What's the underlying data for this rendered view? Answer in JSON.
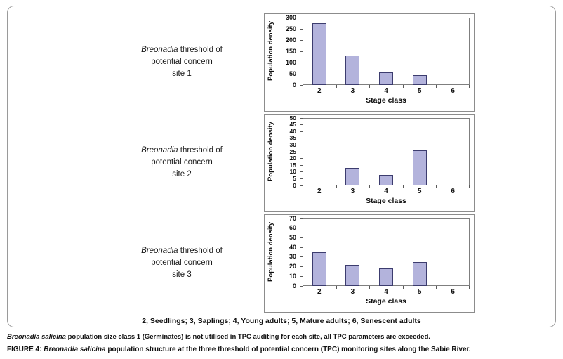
{
  "figure": {
    "legend": "2, Seedlings; 3, Saplings; 4, Young adults; 5, Mature adults; 6, Senescent adults",
    "footnote": {
      "italic": "Breonadia salicina",
      "rest": " population size class 1 (Germinates) is not utilised in TPC auditing for each site, all TPC parameters are exceeded."
    },
    "caption": {
      "prefix": "FIGURE 4: ",
      "italic": "Breonadia salicina",
      "rest": " population structure at the three threshold of potential concern (TPC) monitoring sites along the Sabie River."
    }
  },
  "panels": [
    {
      "label": {
        "italic": "Breonadia",
        "line1_rest": " threshold of",
        "line2": "potential concern",
        "line3": "site 1"
      }
    },
    {
      "label": {
        "italic": "Breonadia",
        "line1_rest": " threshold of",
        "line2": "potential concern",
        "line3": "site 2"
      }
    },
    {
      "label": {
        "italic": "Breonadia",
        "line1_rest": " threshold of",
        "line2": "potential concern",
        "line3": "site 3"
      }
    }
  ],
  "chart_data": [
    {
      "type": "bar",
      "title": "Breonadia threshold of potential concern site 1",
      "categories": [
        "2",
        "3",
        "4",
        "5",
        "6"
      ],
      "values": [
        275,
        130,
        55,
        45,
        0
      ],
      "xlabel": "Stage class",
      "ylabel": "Population density",
      "ylim": [
        0,
        300
      ],
      "ytick_step": 50,
      "grid": false,
      "legend": "none",
      "bar_color": "#b3b3dc",
      "bar_border": "#3c3c6e"
    },
    {
      "type": "bar",
      "title": "Breonadia threshold of potential concern site 2",
      "categories": [
        "2",
        "3",
        "4",
        "5",
        "6"
      ],
      "values": [
        0,
        13,
        8,
        26,
        0
      ],
      "xlabel": "Stage class",
      "ylabel": "Population density",
      "ylim": [
        0,
        50
      ],
      "ytick_step": 5,
      "grid": false,
      "legend": "none",
      "bar_color": "#b3b3dc",
      "bar_border": "#3c3c6e"
    },
    {
      "type": "bar",
      "title": "Breonadia threshold of potential concern site 3",
      "categories": [
        "2",
        "3",
        "4",
        "5",
        "6"
      ],
      "values": [
        35,
        22,
        18,
        25,
        0
      ],
      "xlabel": "Stage class",
      "ylabel": "Population density",
      "ylim": [
        0,
        70
      ],
      "ytick_step": 10,
      "grid": false,
      "legend": "none",
      "bar_color": "#b3b3dc",
      "bar_border": "#3c3c6e"
    }
  ]
}
